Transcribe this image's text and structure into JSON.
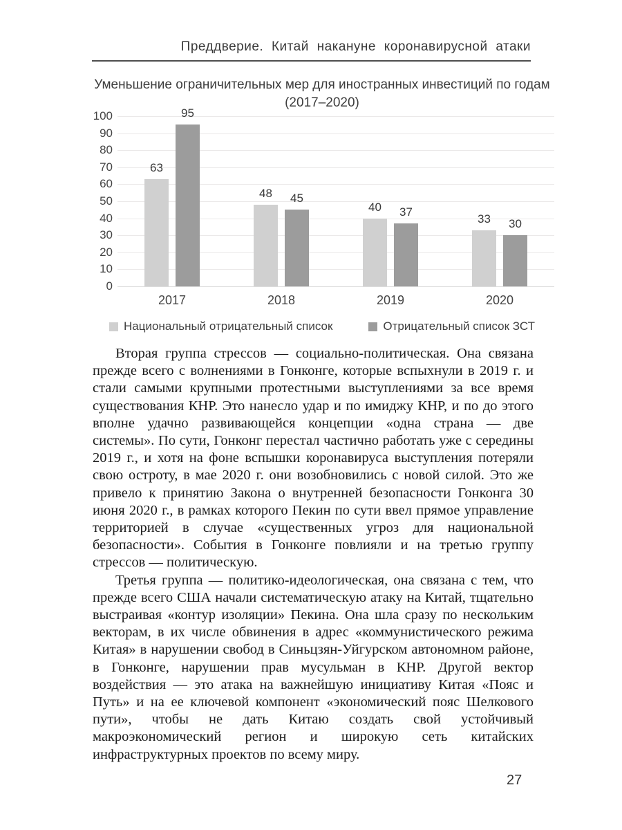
{
  "page": {
    "header": "Преддверие. Китай накануне коронавирусной атаки",
    "page_number": "27"
  },
  "chart_data": {
    "type": "bar",
    "title": "Уменьшение ограничительных мер для иностранных инвестиций по годам",
    "subtitle": "(2017–2020)",
    "categories": [
      "2017",
      "2018",
      "2019",
      "2020"
    ],
    "series": [
      {
        "name": "Национальный отрицательный список",
        "color": "#d0d0d0",
        "values": [
          63,
          48,
          40,
          33
        ]
      },
      {
        "name": "Отрицательный список ЗСТ",
        "color": "#9c9c9c",
        "values": [
          95,
          45,
          37,
          30
        ]
      }
    ],
    "ylim": [
      0,
      100
    ],
    "ytick_step": 10,
    "grid": true,
    "legend_position": "bottom",
    "colors": {
      "grid": "#ebe9e9",
      "text": "#3d3d3d"
    }
  },
  "body": {
    "paragraphs": [
      "Вторая группа стрессов — социально-политическая. Она связана прежде всего с волнениями в Гонконге, которые вспыхнули в 2019 г. и стали самыми крупными протестными выступлениями за все время существования КНР. Это нанесло удар и по имиджу КНР, и по до этого вполне удачно развивающейся концепции «одна страна — две системы». По сути, Гонконг перестал частично работать уже с середины 2019 г., и хотя на фоне вспышки коронавируса выступления потеряли свою остроту, в мае 2020 г. они возобновились с новой силой. Это же привело к принятию Закона о внутренней безопасности Гонконга 30 июня 2020 г., в рамках которого Пекин по сути ввел прямое управление территорией в случае «существенных угроз для национальной безопасности». События в Гонконге повлияли и на третью группу стрессов — политическую.",
      "Третья группа — политико-идеологическая, она связана с тем, что прежде всего США начали систематическую атаку на Китай, тщательно выстраивая «контур изоляции» Пекина. Она шла сразу по нескольким векторам, в их числе обвинения в адрес «коммунистического режима Китая» в нарушении свобод в Синьцзян-Уйгурском автономном районе, в Гонконге, нарушении прав мусульман в КНР. Другой вектор воздействия — это атака на важнейшую инициативу Китая «Пояс и Путь» и на ее ключевой компонент «экономический пояс Шелкового пути», чтобы не дать Китаю создать свой устойчивый макроэкономический регион и широкую сеть китайских инфраструктурных проектов по всему миру."
    ]
  }
}
